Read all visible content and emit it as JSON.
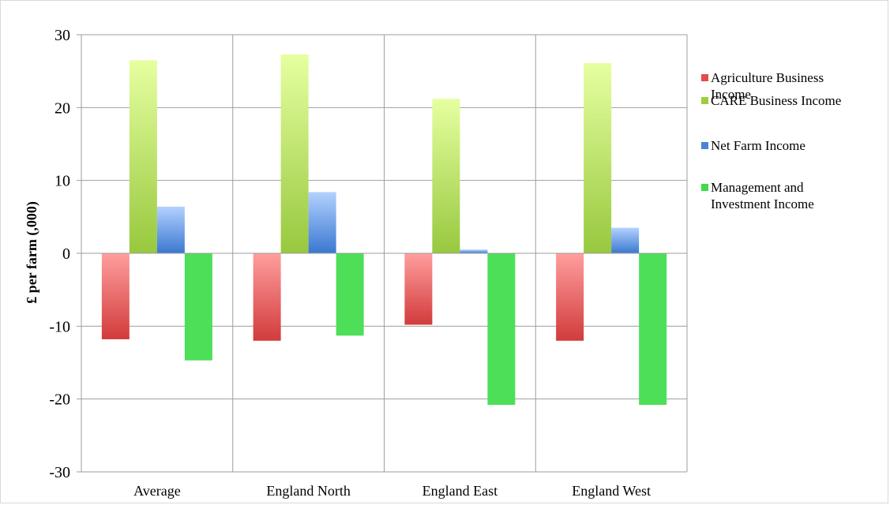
{
  "chart_data": {
    "type": "bar",
    "title": "",
    "xlabel": "",
    "ylabel": "£ per farm (,000)",
    "categories": [
      "Average",
      "England North",
      "England East",
      "England West"
    ],
    "ylim": [
      -30,
      30
    ],
    "yticks": [
      "30",
      "20",
      "10",
      "0",
      "-10",
      "-20",
      "-30"
    ],
    "grid": true,
    "legend_position": "right",
    "series": [
      {
        "name": "Agriculture Business Income",
        "values": [
          -11.8,
          -12.0,
          -9.8,
          -12.0
        ],
        "color_top": "#ff9e9e",
        "color_bottom": "#d23b3b",
        "swatch": "#e24c4c"
      },
      {
        "name": "CARE Business Income",
        "values": [
          26.5,
          27.3,
          21.2,
          26.1
        ],
        "color_top": "#e6ffa0",
        "color_bottom": "#97c83e",
        "swatch": "#9fcd3f"
      },
      {
        "name": "Net Farm Income",
        "values": [
          6.4,
          8.4,
          0.5,
          3.5
        ],
        "color_top": "#b3d1ff",
        "color_bottom": "#3a78d0",
        "swatch": "#4a85d6"
      },
      {
        "name": "Management and Investment Income",
        "values": [
          -14.7,
          -11.3,
          -20.8,
          -20.8
        ],
        "color_top": "#4ddf58",
        "color_bottom": "#4ddf58",
        "swatch": "#3fdc4c"
      }
    ]
  }
}
